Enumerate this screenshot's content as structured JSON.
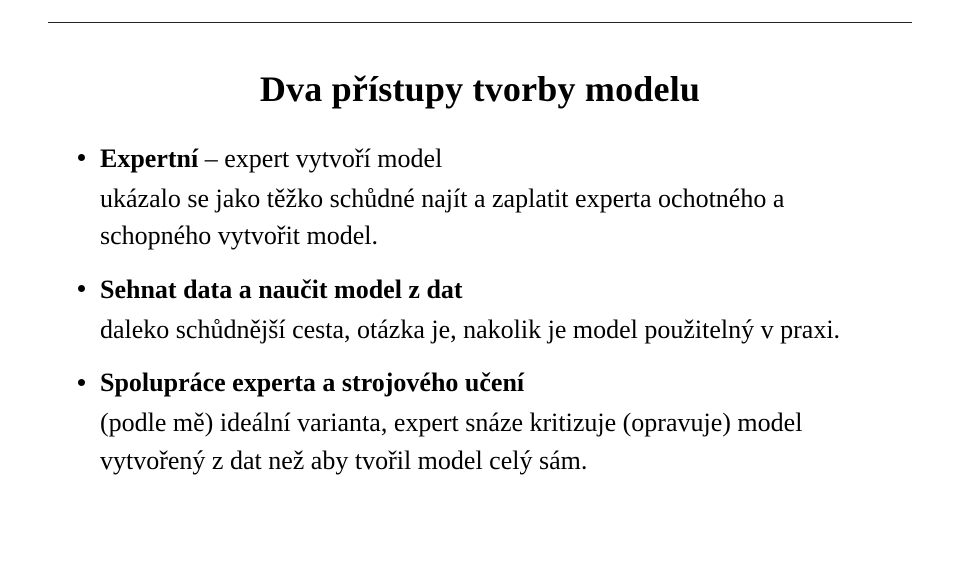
{
  "title": "Dva přístupy tvorby modelu",
  "bullets": [
    {
      "head": "Expertní",
      "head_suffix": " – expert vytvoří model",
      "body": "ukázalo se jako těžko schůdné najít a zaplatit experta ochotného a schopného vytvořit model."
    },
    {
      "head": "Sehnat data a naučit model z dat",
      "head_suffix": "",
      "body": "daleko schůdnější cesta, otázka je, nakolik je model použitelný v praxi."
    },
    {
      "head": "Spolupráce experta a strojového učení",
      "head_suffix": "",
      "body": "(podle mě) ideální varianta, expert snáze kritizuje (opravuje) model vytvořený z dat než aby tvořil model celý sám."
    }
  ]
}
